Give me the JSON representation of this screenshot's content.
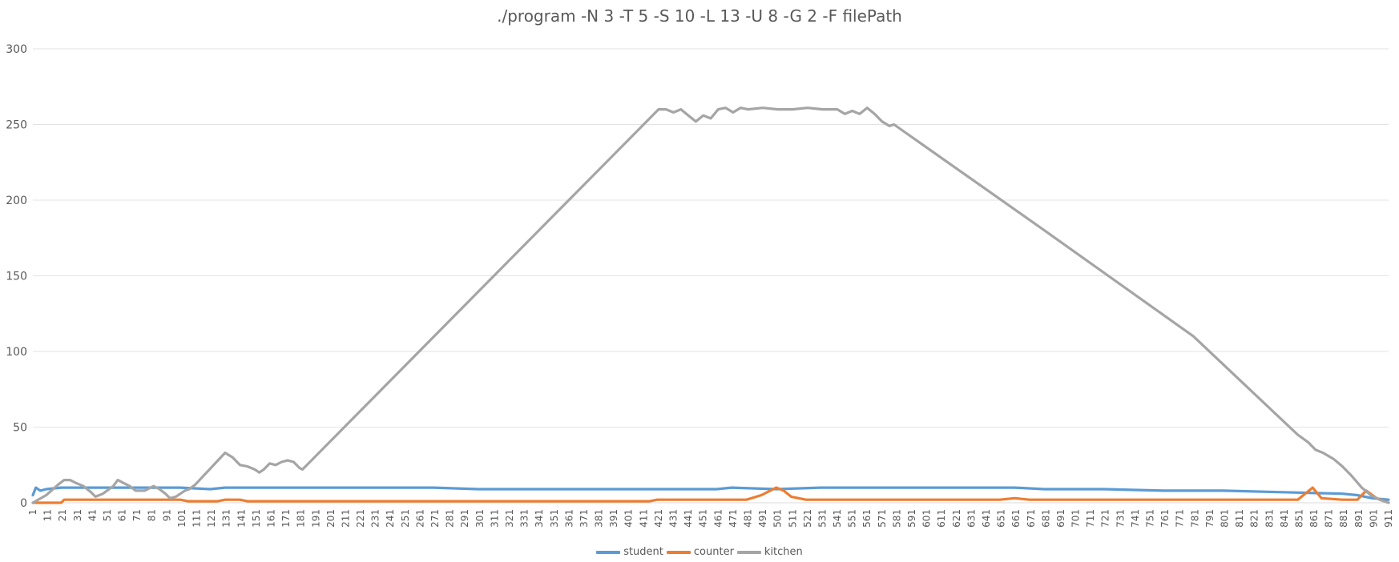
{
  "chart_data": {
    "type": "line",
    "title": "./program -N 3 -T 5 -S 10 -L 13 -U 8 -G 2 -F filePath",
    "xlabel": "",
    "ylabel": "",
    "ylim": [
      0,
      300
    ],
    "yticks": [
      0,
      50,
      100,
      150,
      200,
      250,
      300
    ],
    "x_range": [
      1,
      911
    ],
    "x_tick_step": 10,
    "grid": true,
    "legend": "bottom",
    "series": [
      {
        "name": "student",
        "color": "#5B9BD5",
        "points": [
          [
            1,
            5
          ],
          [
            3,
            10
          ],
          [
            6,
            8
          ],
          [
            10,
            9
          ],
          [
            20,
            10
          ],
          [
            40,
            10
          ],
          [
            60,
            10
          ],
          [
            80,
            10
          ],
          [
            100,
            10
          ],
          [
            120,
            9
          ],
          [
            130,
            10
          ],
          [
            160,
            10
          ],
          [
            181,
            10
          ],
          [
            190,
            10
          ],
          [
            240,
            10
          ],
          [
            270,
            10
          ],
          [
            300,
            9
          ],
          [
            340,
            9
          ],
          [
            380,
            9
          ],
          [
            420,
            9
          ],
          [
            440,
            9
          ],
          [
            460,
            9
          ],
          [
            470,
            10
          ],
          [
            500,
            9
          ],
          [
            530,
            10
          ],
          [
            560,
            10
          ],
          [
            580,
            10
          ],
          [
            620,
            10
          ],
          [
            660,
            10
          ],
          [
            680,
            9
          ],
          [
            720,
            9
          ],
          [
            760,
            8
          ],
          [
            800,
            8
          ],
          [
            840,
            7
          ],
          [
            880,
            6
          ],
          [
            890,
            5
          ],
          [
            900,
            3
          ],
          [
            911,
            2
          ]
        ]
      },
      {
        "name": "counter",
        "color": "#ED7D31",
        "points": [
          [
            1,
            0
          ],
          [
            20,
            0
          ],
          [
            22,
            2
          ],
          [
            50,
            2
          ],
          [
            100,
            2
          ],
          [
            105,
            1
          ],
          [
            125,
            1
          ],
          [
            130,
            2
          ],
          [
            140,
            2
          ],
          [
            145,
            1
          ],
          [
            180,
            1
          ],
          [
            200,
            1
          ],
          [
            300,
            1
          ],
          [
            400,
            1
          ],
          [
            415,
            1
          ],
          [
            420,
            2
          ],
          [
            440,
            2
          ],
          [
            455,
            2
          ],
          [
            470,
            2
          ],
          [
            480,
            2
          ],
          [
            490,
            5
          ],
          [
            500,
            10
          ],
          [
            505,
            8
          ],
          [
            510,
            4
          ],
          [
            520,
            2
          ],
          [
            560,
            2
          ],
          [
            600,
            2
          ],
          [
            650,
            2
          ],
          [
            660,
            3
          ],
          [
            670,
            2
          ],
          [
            700,
            2
          ],
          [
            800,
            2
          ],
          [
            850,
            2
          ],
          [
            860,
            10
          ],
          [
            866,
            3
          ],
          [
            880,
            2
          ],
          [
            890,
            2
          ],
          [
            896,
            8
          ],
          [
            903,
            3
          ],
          [
            911,
            0
          ]
        ]
      },
      {
        "name": "kitchen",
        "color": "#A5A5A5",
        "points": [
          [
            1,
            0
          ],
          [
            10,
            5
          ],
          [
            18,
            12
          ],
          [
            22,
            15
          ],
          [
            26,
            15
          ],
          [
            30,
            13
          ],
          [
            35,
            11
          ],
          [
            40,
            7
          ],
          [
            43,
            4
          ],
          [
            48,
            6
          ],
          [
            55,
            11
          ],
          [
            58,
            15
          ],
          [
            62,
            13
          ],
          [
            66,
            11
          ],
          [
            70,
            8
          ],
          [
            76,
            8
          ],
          [
            82,
            11
          ],
          [
            86,
            9
          ],
          [
            90,
            6
          ],
          [
            93,
            3
          ],
          [
            97,
            4
          ],
          [
            100,
            6
          ],
          [
            103,
            8
          ],
          [
            106,
            9
          ],
          [
            110,
            12
          ],
          [
            130,
            33
          ],
          [
            135,
            30
          ],
          [
            140,
            25
          ],
          [
            145,
            24
          ],
          [
            150,
            22
          ],
          [
            153,
            20
          ],
          [
            156,
            22
          ],
          [
            160,
            26
          ],
          [
            164,
            25
          ],
          [
            168,
            27
          ],
          [
            172,
            28
          ],
          [
            176,
            27
          ],
          [
            180,
            23
          ],
          [
            182,
            22
          ],
          [
            421,
            260
          ],
          [
            426,
            260
          ],
          [
            431,
            258
          ],
          [
            436,
            260
          ],
          [
            441,
            256
          ],
          [
            446,
            252
          ],
          [
            451,
            256
          ],
          [
            456,
            254
          ],
          [
            461,
            260
          ],
          [
            466,
            261
          ],
          [
            471,
            258
          ],
          [
            476,
            261
          ],
          [
            481,
            260
          ],
          [
            491,
            261
          ],
          [
            501,
            260
          ],
          [
            511,
            260
          ],
          [
            521,
            261
          ],
          [
            531,
            260
          ],
          [
            541,
            260
          ],
          [
            546,
            257
          ],
          [
            551,
            259
          ],
          [
            556,
            257
          ],
          [
            561,
            261
          ],
          [
            566,
            257
          ],
          [
            571,
            252
          ],
          [
            576,
            249
          ],
          [
            579,
            250
          ],
          [
            680,
            180
          ],
          [
            780,
            110
          ],
          [
            850,
            45
          ],
          [
            857,
            40
          ],
          [
            862,
            35
          ],
          [
            867,
            33
          ],
          [
            874,
            29
          ],
          [
            880,
            24
          ],
          [
            886,
            18
          ],
          [
            893,
            10
          ],
          [
            899,
            5
          ],
          [
            905,
            2
          ],
          [
            911,
            0
          ]
        ]
      }
    ]
  }
}
